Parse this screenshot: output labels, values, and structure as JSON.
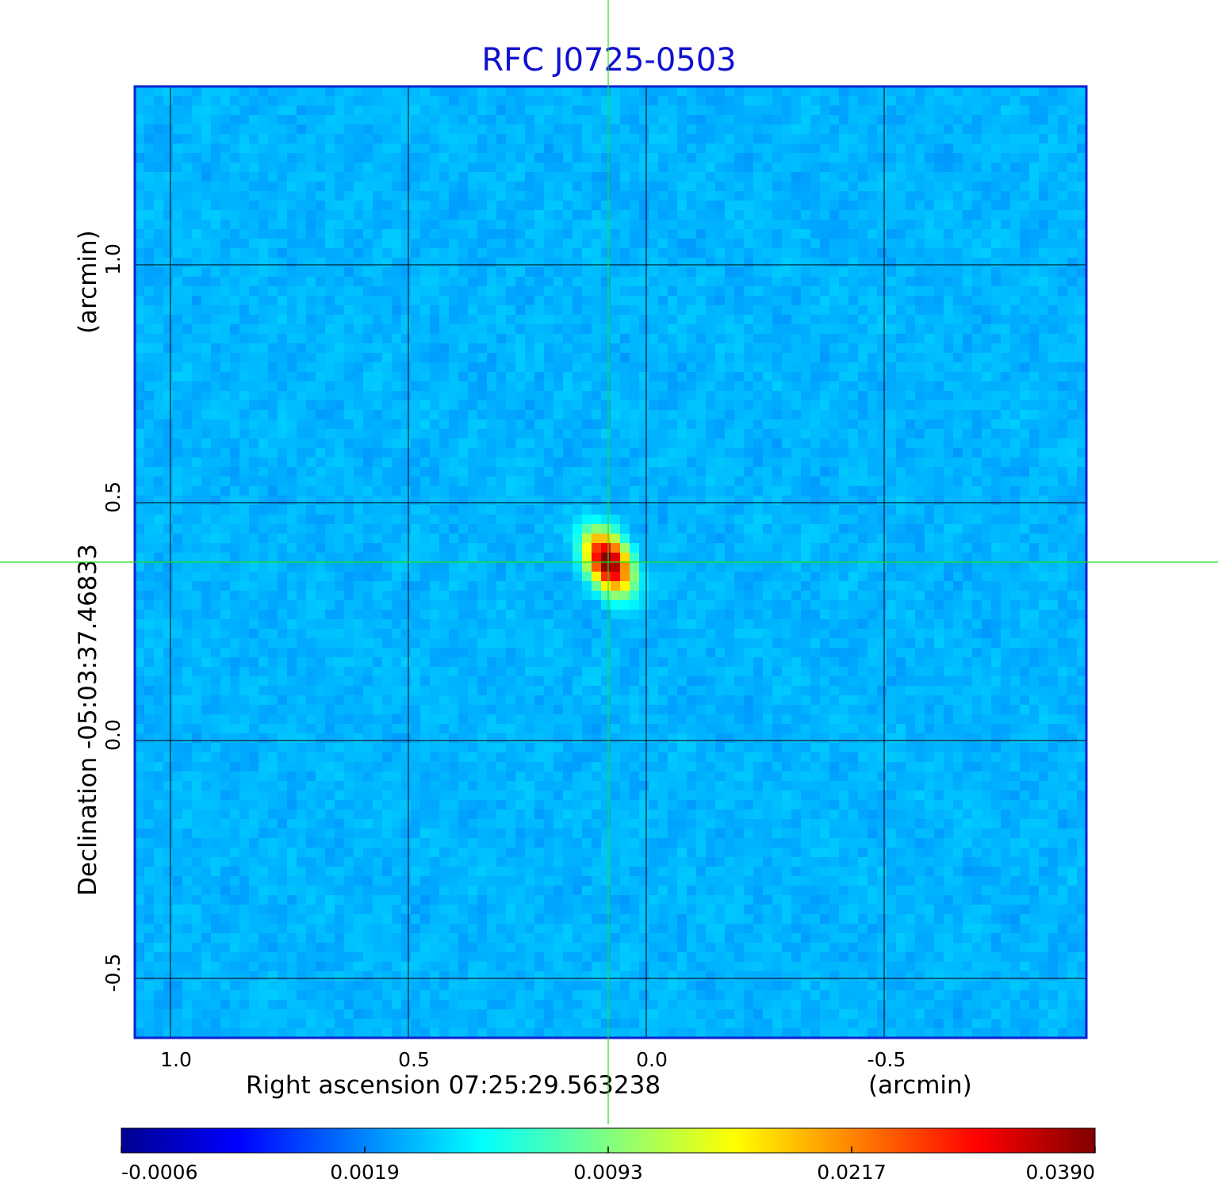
{
  "chart_data": {
    "type": "heatmap",
    "title": "RFC J0725-0503",
    "xlabel": "Right ascension  07:25:29.563238",
    "xunit": "(arcmin)",
    "ylabel": "Declination  -05:03:37.46833",
    "yunit": "(arcmin)",
    "xlim": [
      1.075,
      -0.925
    ],
    "ylim": [
      -0.625,
      1.375
    ],
    "x_ticks": [
      {
        "value": 1.0,
        "label": "1.0"
      },
      {
        "value": 0.5,
        "label": "0.5"
      },
      {
        "value": 0.0,
        "label": "0.0"
      },
      {
        "value": -0.5,
        "label": "-0.5"
      }
    ],
    "y_ticks": [
      {
        "value": -0.5,
        "label": "-0.5"
      },
      {
        "value": 0.0,
        "label": "0.0"
      },
      {
        "value": 0.5,
        "label": "0.5"
      },
      {
        "value": 1.0,
        "label": "1.0"
      }
    ],
    "grid": true,
    "crosshair": {
      "x": 0.08,
      "y": 0.375,
      "color": "#22dd22"
    },
    "source": {
      "x": 0.08,
      "y": 0.375,
      "peak": 0.039,
      "fwhm_major_arcmin": 0.09,
      "fwhm_minor_arcmin": 0.055,
      "position_angle_deg": 28
    },
    "noise_level": 0.0003,
    "colorbar": {
      "colormap": "jet",
      "range": [
        -0.0006,
        0.039
      ],
      "tick_labels": [
        "-0.0006",
        "0.0019",
        "0.0093",
        "0.0217",
        "0.0390"
      ]
    }
  }
}
